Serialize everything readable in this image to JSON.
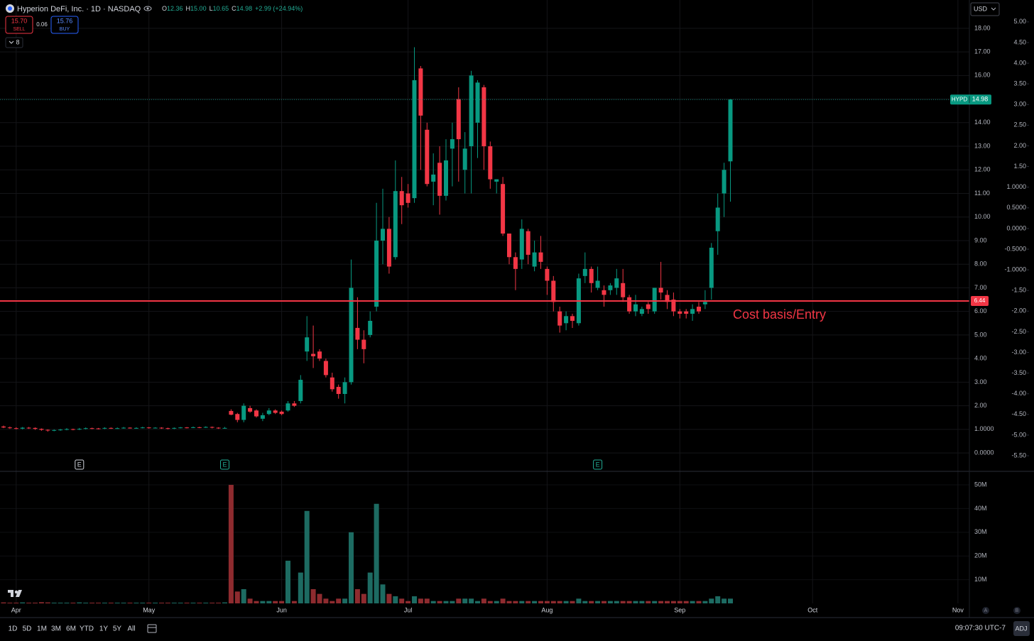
{
  "header": {
    "title": "Hyperion DeFi, Inc. · 1D · NASDAQ",
    "ohlc": [
      {
        "label": "O",
        "value": "12.36"
      },
      {
        "label": "H",
        "value": "15.00"
      },
      {
        "label": "L",
        "value": "10.65"
      },
      {
        "label": "C",
        "value": "14.98"
      }
    ],
    "change": "+2.99 (+24.94%)",
    "sell": {
      "price": "15.70",
      "label": "SELL"
    },
    "spread": "0.06",
    "buy": {
      "price": "15.76",
      "label": "BUY"
    },
    "indicators": "8",
    "currency": "USD"
  },
  "chart_data": {
    "type": "candlestick",
    "categories": [
      null,
      null,
      "Apr",
      null,
      null,
      null,
      null,
      null,
      null,
      null,
      null,
      null,
      null,
      null,
      null,
      null,
      null,
      null,
      null,
      null,
      null,
      null,
      null,
      "May",
      null,
      null,
      null,
      null,
      null,
      null,
      null,
      null,
      null,
      null,
      null,
      null,
      null,
      null,
      null,
      null,
      null,
      null,
      null,
      null,
      "Jun",
      null,
      null,
      null,
      null,
      null,
      null,
      null,
      null,
      null,
      null,
      null,
      null,
      null,
      null,
      null,
      null,
      null,
      null,
      null,
      "Jul",
      null,
      null,
      null,
      null,
      null,
      null,
      null,
      null,
      null,
      null,
      null,
      null,
      null,
      null,
      null,
      null,
      null,
      null,
      null,
      null,
      null,
      "Aug",
      null,
      null,
      null,
      null,
      null,
      null,
      null,
      null,
      null,
      null,
      null,
      null,
      null,
      null,
      null,
      null,
      null,
      null,
      null,
      null,
      "Sep",
      null,
      null,
      null,
      null,
      null,
      null,
      null,
      null,
      null,
      null,
      null,
      null,
      null,
      null,
      null,
      null,
      null,
      null,
      null,
      null,
      "Oct",
      null,
      null,
      null,
      null,
      null,
      null,
      null,
      null,
      null,
      null,
      null,
      null,
      null,
      null,
      null,
      null,
      null,
      null,
      null,
      null,
      null,
      null,
      "Nov",
      null
    ],
    "open": [
      1.12,
      1.08,
      1.05,
      1.03,
      1.07,
      1.06,
      1.02,
      0.98,
      0.95,
      0.97,
      0.99,
      1.01,
      0.99,
      1.02,
      1.05,
      1.04,
      1.03,
      1.06,
      1.04,
      1.05,
      1.07,
      1.05,
      1.06,
      1.08,
      1.06,
      1.07,
      1.05,
      1.03,
      1.06,
      1.08,
      1.07,
      1.09,
      1.08,
      1.1,
      1.07,
      1.05,
      1.78,
      1.65,
      1.4,
      1.9,
      1.8,
      1.45,
      1.65,
      1.8,
      1.75,
      1.8,
      2.1,
      2.2,
      4.3,
      4.2,
      4.3,
      3.9,
      3.2,
      2.8,
      2.5,
      3.0,
      5.3,
      4.8,
      5.0,
      6.2,
      9.0,
      9.5,
      8.3,
      11.1,
      11.0,
      10.8,
      16.3,
      13.7,
      11.5,
      12.3,
      10.9,
      12.9,
      15.0,
      12.0,
      13.0,
      14.0,
      15.5,
      13.0,
      11.5,
      11.4,
      9.3,
      8.3,
      8.2,
      9.4,
      7.9,
      8.5,
      7.8,
      7.3,
      6.0,
      5.5,
      5.8,
      5.5,
      7.5,
      7.8,
      7.0,
      6.9,
      6.9,
      7.0,
      7.2,
      6.6,
      6.0,
      5.9,
      6.3,
      6.0,
      7.0,
      6.7,
      6.5,
      6.0,
      6.0,
      5.9,
      6.2,
      6.3,
      7.0,
      9.4,
      11.0,
      12.36,
      null,
      null,
      null,
      null,
      null,
      null,
      null,
      null,
      null,
      null,
      null,
      null,
      null,
      null,
      null,
      null,
      null,
      null,
      null,
      null,
      null,
      null,
      null,
      null,
      null,
      null,
      null,
      null,
      null,
      null,
      null,
      null,
      null,
      null,
      null,
      null,
      null
    ],
    "high": [
      1.16,
      1.12,
      1.09,
      1.1,
      1.1,
      1.08,
      1.04,
      1.0,
      1.0,
      1.02,
      1.05,
      1.03,
      1.06,
      1.08,
      1.07,
      1.06,
      1.09,
      1.08,
      1.08,
      1.1,
      1.09,
      1.09,
      1.11,
      1.1,
      1.09,
      1.09,
      1.07,
      1.08,
      1.1,
      1.1,
      1.12,
      1.11,
      1.13,
      1.12,
      1.09,
      1.1,
      1.85,
      1.7,
      2.1,
      2.0,
      1.85,
      1.7,
      1.9,
      1.85,
      1.8,
      2.2,
      2.2,
      3.3,
      5.8,
      5.4,
      4.4,
      4.0,
      3.4,
      2.9,
      3.2,
      8.2,
      6.6,
      5.2,
      6.0,
      10.6,
      11.2,
      10.0,
      12.4,
      11.7,
      11.4,
      17.2,
      16.4,
      14.0,
      12.7,
      13.0,
      13.3,
      14.0,
      15.5,
      13.6,
      16.2,
      15.8,
      15.6,
      13.2,
      11.6,
      11.7,
      9.3,
      8.5,
      9.9,
      9.5,
      9.0,
      9.2,
      7.9,
      7.5,
      6.2,
      6.0,
      5.9,
      7.6,
      8.5,
      7.9,
      7.9,
      7.1,
      7.2,
      7.8,
      7.8,
      6.7,
      6.7,
      6.2,
      6.4,
      7.0,
      8.1,
      6.9,
      6.8,
      6.1,
      6.1,
      6.3,
      6.4,
      6.9,
      8.9,
      11.0,
      12.3,
      15.0,
      null,
      null,
      null,
      null,
      null,
      null,
      null,
      null,
      null,
      null,
      null,
      null,
      null,
      null,
      null,
      null,
      null,
      null,
      null,
      null,
      null,
      null,
      null,
      null,
      null,
      null,
      null,
      null,
      null,
      null,
      null,
      null,
      null,
      null,
      null,
      null,
      null
    ],
    "low": [
      1.05,
      1.02,
      1.0,
      1.0,
      1.02,
      0.98,
      0.94,
      0.9,
      0.92,
      0.94,
      0.96,
      0.96,
      0.97,
      1.0,
      1.01,
      1.0,
      1.01,
      1.02,
      1.02,
      1.03,
      1.03,
      1.03,
      1.04,
      1.03,
      1.04,
      1.02,
      1.0,
      1.01,
      1.04,
      1.04,
      1.05,
      1.05,
      1.06,
      1.04,
      1.02,
      1.03,
      1.6,
      1.3,
      1.3,
      1.7,
      1.5,
      1.35,
      1.6,
      1.65,
      1.6,
      1.75,
      1.95,
      2.1,
      3.9,
      3.6,
      3.9,
      3.2,
      2.6,
      2.3,
      2.1,
      2.9,
      4.4,
      3.8,
      4.9,
      6.0,
      8.0,
      7.6,
      8.2,
      9.7,
      10.4,
      10.6,
      12.0,
      11.3,
      10.5,
      10.1,
      10.7,
      11.3,
      11.5,
      11.0,
      11.0,
      12.5,
      12.0,
      11.2,
      11.0,
      9.2,
      8.0,
      6.9,
      7.8,
      8.0,
      7.7,
      7.8,
      6.7,
      6.0,
      5.1,
      5.2,
      5.3,
      5.4,
      7.2,
      6.8,
      6.9,
      6.2,
      6.7,
      6.7,
      6.4,
      5.9,
      5.8,
      5.8,
      5.9,
      5.9,
      6.5,
      6.1,
      5.8,
      5.7,
      5.7,
      5.6,
      5.9,
      6.1,
      6.5,
      8.4,
      10.0,
      10.65,
      null,
      null,
      null,
      null,
      null,
      null,
      null,
      null,
      null,
      null,
      null,
      null,
      null,
      null,
      null,
      null,
      null,
      null,
      null,
      null,
      null,
      null,
      null,
      null,
      null,
      null,
      null,
      null,
      null,
      null,
      null,
      null,
      null,
      null,
      null,
      null,
      null
    ],
    "close": [
      1.08,
      1.05,
      1.03,
      1.07,
      1.06,
      1.02,
      0.98,
      0.95,
      0.97,
      0.99,
      1.01,
      0.99,
      1.02,
      1.05,
      1.04,
      1.03,
      1.06,
      1.04,
      1.05,
      1.07,
      1.05,
      1.06,
      1.08,
      1.06,
      1.07,
      1.05,
      1.03,
      1.06,
      1.08,
      1.07,
      1.09,
      1.08,
      1.1,
      1.07,
      1.05,
      1.06,
      1.62,
      1.4,
      2.0,
      1.75,
      1.55,
      1.6,
      1.8,
      1.7,
      1.65,
      2.1,
      2.0,
      3.1,
      4.9,
      4.1,
      4.0,
      3.3,
      2.7,
      2.5,
      3.0,
      7.0,
      4.8,
      4.4,
      5.6,
      9.0,
      9.5,
      7.9,
      11.1,
      10.5,
      10.6,
      15.8,
      14.3,
      11.4,
      11.8,
      10.9,
      12.4,
      13.3,
      13.3,
      12.9,
      16.0,
      15.7,
      13.0,
      11.6,
      11.6,
      9.3,
      8.3,
      7.8,
      9.5,
      8.4,
      8.5,
      8.1,
      7.3,
      6.4,
      5.4,
      5.8,
      5.6,
      7.4,
      7.8,
      7.2,
      7.3,
      6.7,
      7.1,
      7.4,
      6.6,
      6.0,
      6.3,
      6.1,
      6.1,
      7.0,
      6.8,
      6.4,
      6.0,
      5.9,
      5.9,
      6.1,
      6.0,
      6.4,
      8.7,
      10.4,
      12.0,
      14.98,
      null,
      null,
      null,
      null,
      null,
      null,
      null,
      null,
      null,
      null,
      null,
      null,
      null,
      null,
      null,
      null,
      null,
      null,
      null,
      null,
      null,
      null,
      null,
      null,
      null,
      null,
      null,
      null,
      null,
      null,
      null,
      null,
      null,
      null,
      null,
      null,
      null
    ],
    "volume": [
      0.4,
      0.3,
      0.3,
      0.4,
      0.3,
      0.3,
      0.5,
      0.4,
      0.3,
      0.3,
      0.3,
      0.3,
      0.4,
      0.3,
      0.3,
      0.3,
      0.3,
      0.3,
      0.3,
      0.3,
      0.3,
      0.3,
      0.3,
      0.3,
      0.3,
      0.3,
      0.3,
      0.3,
      0.3,
      0.3,
      0.3,
      0.3,
      0.3,
      0.3,
      0.3,
      0.4,
      50,
      5,
      6,
      2,
      1,
      1,
      1,
      1,
      1,
      18,
      1,
      13,
      39,
      6,
      4,
      2,
      1,
      2,
      2,
      30,
      6,
      4,
      13,
      42,
      8,
      4,
      3,
      2,
      1,
      3,
      2,
      2,
      1,
      1,
      1,
      1,
      2,
      2,
      2,
      1,
      2,
      1,
      1,
      2,
      1,
      1,
      1,
      1,
      1,
      1,
      1,
      1,
      1,
      1,
      1,
      2,
      1,
      1,
      1,
      1,
      1,
      1,
      1,
      1,
      1,
      1,
      1,
      1,
      1,
      1,
      1,
      1,
      1,
      1,
      1,
      1,
      2,
      3,
      2,
      2,
      null,
      null,
      null,
      null,
      null,
      null,
      null,
      null,
      null,
      null,
      null,
      null,
      null,
      null,
      null,
      null,
      null,
      null,
      null,
      null,
      null,
      null,
      null,
      null,
      null,
      null,
      null,
      null,
      null,
      null,
      null,
      null,
      null,
      null,
      null,
      null,
      null
    ],
    "up_color": "#089981",
    "down_color": "#f23645",
    "volume_up_color": "#1d6b62",
    "volume_down_color": "#8e2b2f",
    "ylim": [
      -0.75,
      19.2
    ],
    "yticks": [
      {
        "value": 0,
        "label": "0.0000"
      },
      {
        "value": 1,
        "label": "1.0000"
      },
      {
        "value": 2,
        "label": "2.00"
      },
      {
        "value": 3,
        "label": "3.00"
      },
      {
        "value": 4,
        "label": "4.00"
      },
      {
        "value": 5,
        "label": "5.00"
      },
      {
        "value": 6,
        "label": "6.00"
      },
      {
        "value": 7,
        "label": "7.00"
      },
      {
        "value": 8,
        "label": "8.00"
      },
      {
        "value": 9,
        "label": "9.00"
      },
      {
        "value": 10,
        "label": "10.00"
      },
      {
        "value": 11,
        "label": "11.00"
      },
      {
        "value": 12,
        "label": "12.00"
      },
      {
        "value": 13,
        "label": "13.00"
      },
      {
        "value": 14,
        "label": "14.00"
      },
      {
        "value": 15,
        "label": "15.00"
      },
      {
        "value": 16,
        "label": "16.00"
      },
      {
        "value": 17,
        "label": "17.00"
      },
      {
        "value": 18,
        "label": "18.00"
      }
    ],
    "y2lim": [
      -5.86,
      5.53
    ],
    "y2ticks": [
      {
        "value": 5,
        "label": "5.00"
      },
      {
        "value": 4.5,
        "label": "4.50"
      },
      {
        "value": 4,
        "label": "4.00"
      },
      {
        "value": 3.5,
        "label": "3.50"
      },
      {
        "value": 3,
        "label": "3.00"
      },
      {
        "value": 2.5,
        "label": "2.50"
      },
      {
        "value": 2,
        "label": "2.00"
      },
      {
        "value": 1.5,
        "label": "1.50"
      },
      {
        "value": 1,
        "label": "1.0000"
      },
      {
        "value": 0.5,
        "label": "0.5000"
      },
      {
        "value": 0,
        "label": "0.0000"
      },
      {
        "value": -0.5,
        "label": "-0.5000"
      },
      {
        "value": -1,
        "label": "-1.0000"
      },
      {
        "value": -1.5,
        "label": "-1.50"
      },
      {
        "value": -2,
        "label": "-2.00"
      },
      {
        "value": -2.5,
        "label": "-2.50"
      },
      {
        "value": -3,
        "label": "-3.00"
      },
      {
        "value": -3.5,
        "label": "-3.50"
      },
      {
        "value": -4,
        "label": "-4.00"
      },
      {
        "value": -4.5,
        "label": "-4.50"
      },
      {
        "value": -5,
        "label": "-5.00"
      },
      {
        "value": -5.5,
        "label": "-5.50"
      }
    ],
    "volume_ylim": [
      0,
      55.4
    ],
    "volume_yticks": [
      {
        "value": 10,
        "label": "10M"
      },
      {
        "value": 20,
        "label": "20M"
      },
      {
        "value": 30,
        "label": "30M"
      },
      {
        "value": 40,
        "label": "40M"
      },
      {
        "value": 50,
        "label": "50M"
      }
    ],
    "grid": true,
    "symbol_tag": "HYPD",
    "price_line": {
      "value": 6.44,
      "color": "#f23645",
      "label": "Cost basis/Entry"
    },
    "events": [
      {
        "label": "E",
        "index": 12,
        "color": "#d1d4dc"
      },
      {
        "label": "E",
        "index": 35,
        "color": "#22ab94"
      },
      {
        "label": "E",
        "index": 94,
        "color": "#22ab94"
      }
    ]
  },
  "toolbar": {
    "ranges": [
      "1D",
      "5D",
      "1M",
      "3M",
      "6M",
      "YTD",
      "1Y",
      "5Y",
      "All"
    ],
    "scale_buttons": [
      "A",
      "B"
    ],
    "time": "09:07:30 UTC-7",
    "adj": "ADJ"
  }
}
